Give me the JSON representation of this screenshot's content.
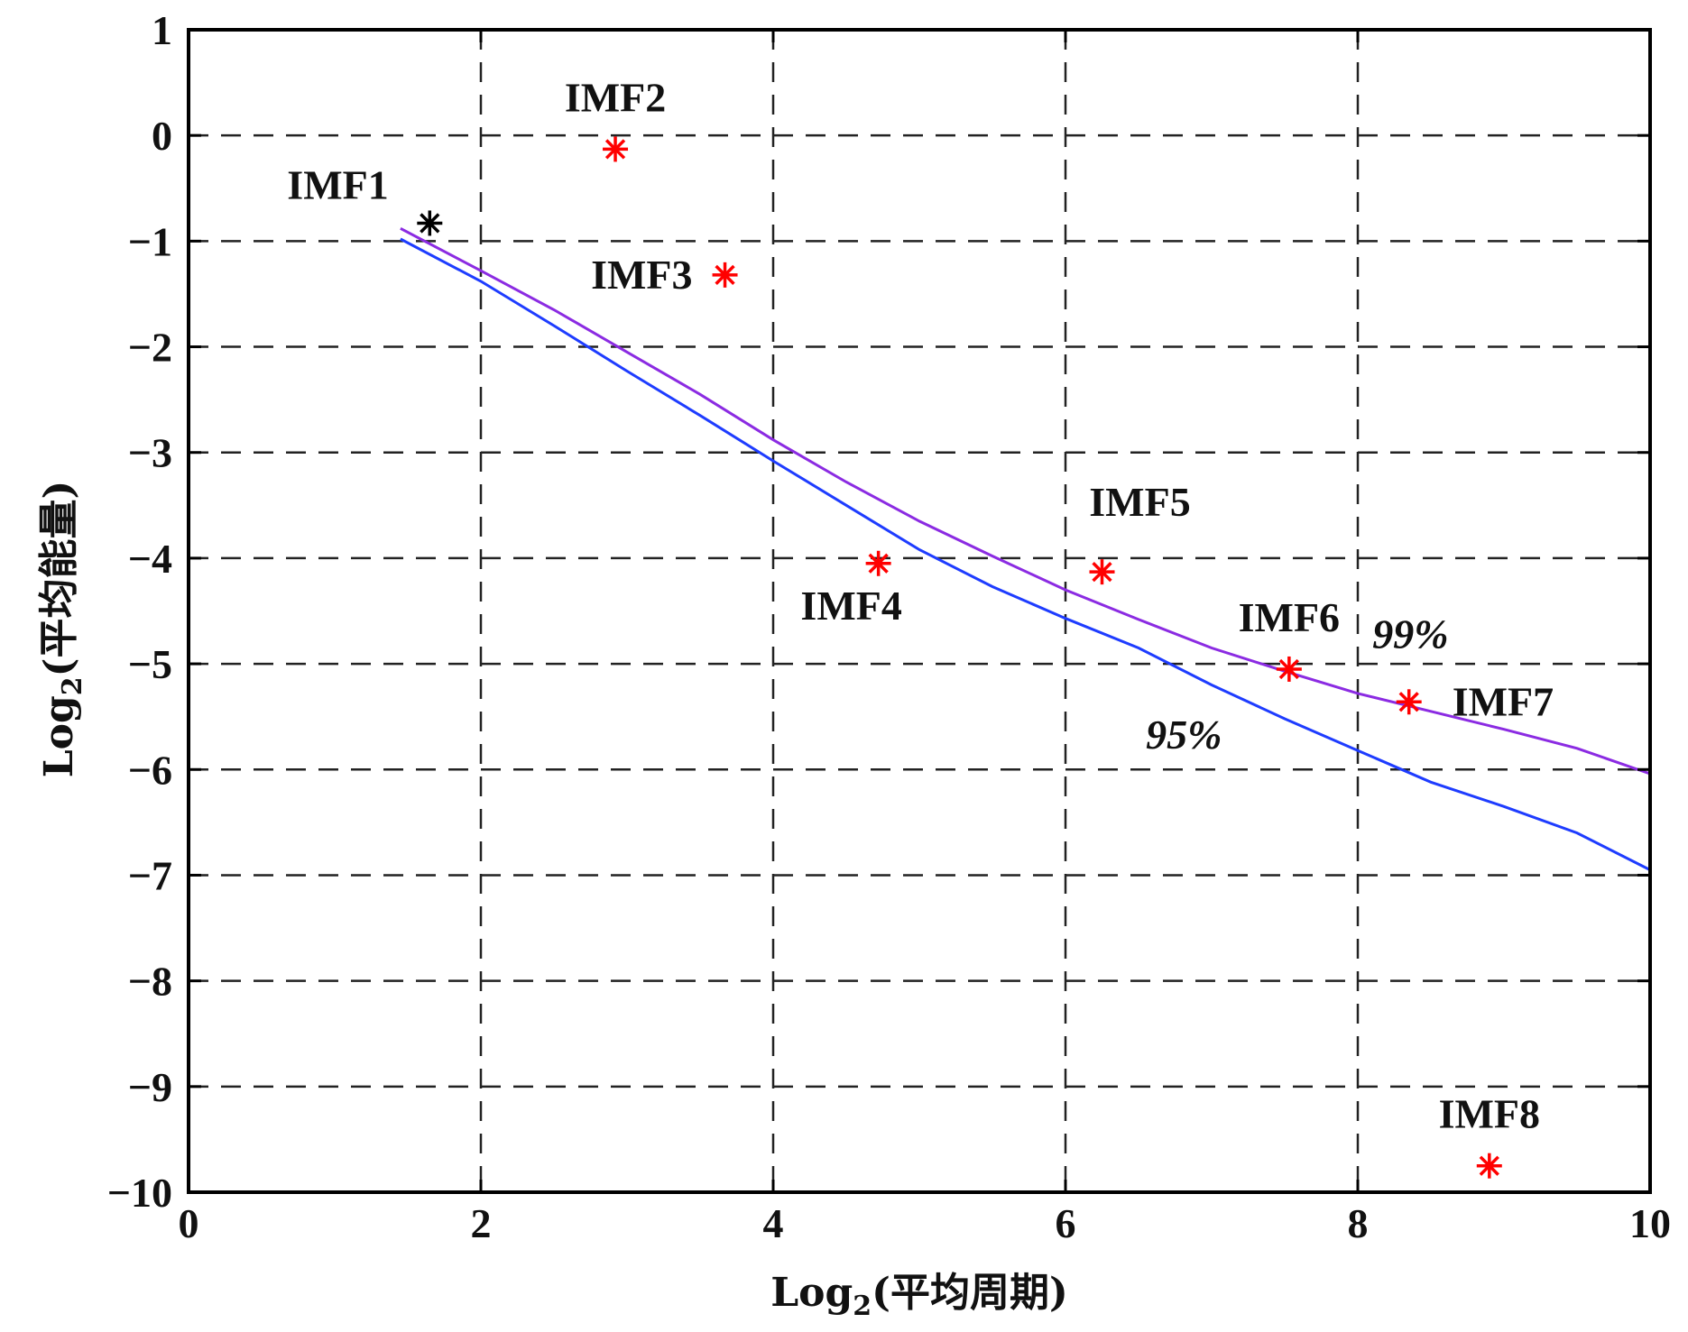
{
  "chart_data": {
    "type": "scatter",
    "xlabel": "Log2(平均周期)",
    "ylabel": "Log2(平均能量)",
    "xlabel_parts": {
      "base": "Log",
      "sub": "2",
      "rest": "(平均周期)"
    },
    "ylabel_parts": {
      "base": "Log",
      "sub": "2",
      "rest": "(平均能量)"
    },
    "xlim": [
      0,
      10
    ],
    "ylim": [
      -10,
      1
    ],
    "xticks": [
      0,
      2,
      4,
      6,
      8,
      10
    ],
    "yticks": [
      1,
      0,
      -1,
      -2,
      -3,
      -4,
      -5,
      -6,
      -7,
      -8,
      -9,
      -10
    ],
    "xtick_labels": [
      "0",
      "2",
      "4",
      "6",
      "8",
      "10"
    ],
    "ytick_labels": [
      "1",
      "0",
      "−1",
      "−2",
      "−3",
      "−4",
      "−5",
      "−6",
      "−7",
      "−8",
      "−9",
      "−10"
    ],
    "grid": true,
    "grid_style": "dashed",
    "points": [
      {
        "name": "IMF1",
        "x": 1.65,
        "y": -0.83,
        "color": "#000000",
        "label_pos": "upper-left"
      },
      {
        "name": "IMF2",
        "x": 2.92,
        "y": -0.13,
        "color": "#ff0000",
        "label_pos": "above"
      },
      {
        "name": "IMF3",
        "x": 3.67,
        "y": -1.32,
        "color": "#ff0000",
        "label_pos": "left"
      },
      {
        "name": "IMF4",
        "x": 4.72,
        "y": -4.05,
        "color": "#ff0000",
        "label_pos": "below"
      },
      {
        "name": "IMF5",
        "x": 6.25,
        "y": -4.13,
        "color": "#ff0000",
        "label_pos": "above-right"
      },
      {
        "name": "IMF6",
        "x": 7.53,
        "y": -5.05,
        "color": "#ff0000",
        "label_pos": "above"
      },
      {
        "name": "IMF7",
        "x": 8.35,
        "y": -5.36,
        "color": "#ff0000",
        "label_pos": "right"
      },
      {
        "name": "IMF8",
        "x": 8.9,
        "y": -9.75,
        "color": "#ff0000",
        "label_pos": "above"
      }
    ],
    "series": [
      {
        "name": "99%",
        "color": "#8b2be2",
        "x": [
          1.45,
          2.0,
          2.5,
          3.0,
          3.5,
          4.0,
          4.5,
          5.0,
          5.5,
          6.0,
          6.5,
          7.0,
          7.5,
          8.0,
          8.5,
          9.0,
          9.5,
          10.0
        ],
        "y": [
          -0.88,
          -1.28,
          -1.65,
          -2.05,
          -2.45,
          -2.88,
          -3.28,
          -3.65,
          -3.98,
          -4.3,
          -4.58,
          -4.85,
          -5.07,
          -5.28,
          -5.45,
          -5.62,
          -5.8,
          -6.04
        ]
      },
      {
        "name": "95%",
        "color": "#1e3cff",
        "x": [
          1.45,
          2.0,
          2.5,
          3.0,
          3.5,
          4.0,
          4.5,
          5.0,
          5.5,
          6.0,
          6.5,
          7.0,
          7.5,
          8.0,
          8.5,
          9.0,
          9.5,
          10.0
        ],
        "y": [
          -0.98,
          -1.38,
          -1.8,
          -2.23,
          -2.65,
          -3.08,
          -3.5,
          -3.92,
          -4.27,
          -4.57,
          -4.85,
          -5.2,
          -5.52,
          -5.82,
          -6.12,
          -6.35,
          -6.6,
          -6.95
        ]
      }
    ],
    "curve_labels": [
      {
        "text": "99%",
        "x": 8.1,
        "y": -4.85
      },
      {
        "text": "95%",
        "x": 6.55,
        "y": -5.8
      }
    ]
  }
}
